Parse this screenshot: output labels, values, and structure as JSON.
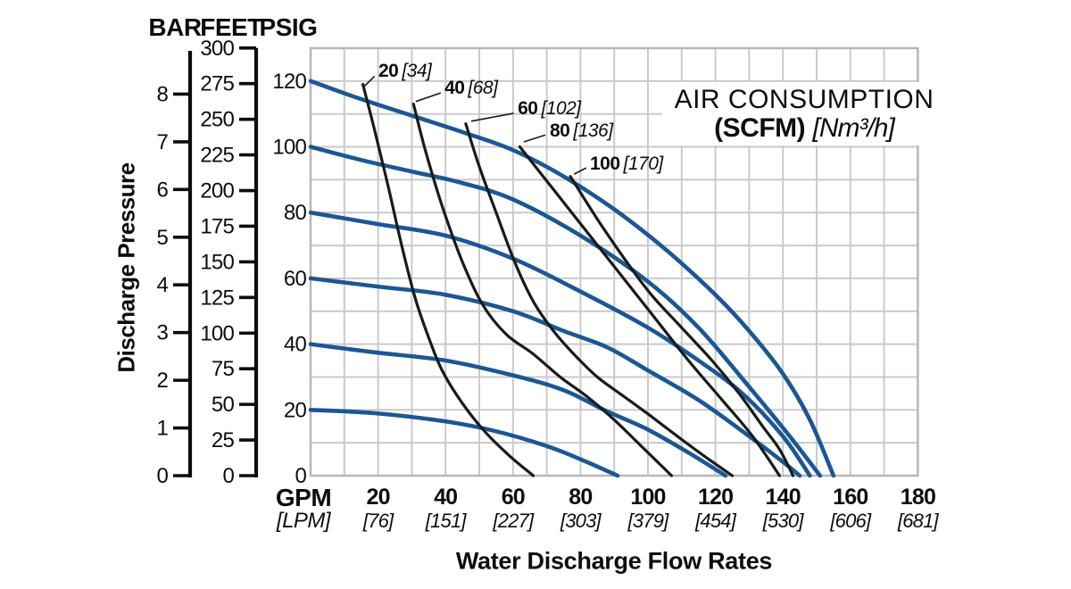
{
  "chart_data": {
    "type": "line",
    "title_box": {
      "line1": "AIR CONSUMPTION",
      "line2_bold": "(SCFM)",
      "line2_italic": "[Nm³/h]"
    },
    "axes": {
      "x": {
        "unit_bold": "GPM",
        "unit_italic": "[LPM]",
        "title": "Water Discharge Flow Rates",
        "min": 0,
        "max": 180,
        "grid_step": 10,
        "ticks": [
          {
            "gpm": "20",
            "lpm": "[76]"
          },
          {
            "gpm": "40",
            "lpm": "[151]"
          },
          {
            "gpm": "60",
            "lpm": "[227]"
          },
          {
            "gpm": "80",
            "lpm": "[303]"
          },
          {
            "gpm": "100",
            "lpm": "[379]"
          },
          {
            "gpm": "120",
            "lpm": "[454]"
          },
          {
            "gpm": "140",
            "lpm": "[530]"
          },
          {
            "gpm": "160",
            "lpm": "[606]"
          },
          {
            "gpm": "180",
            "lpm": "[681]"
          }
        ]
      },
      "y_title": "Discharge Pressure",
      "y_psig": {
        "header": "PSIG",
        "min": 0,
        "max": 130,
        "grid_step": 10,
        "labels": [
          "0",
          "20",
          "40",
          "60",
          "80",
          "100",
          "120"
        ]
      },
      "y_feet": {
        "header": "FEET",
        "max": 300,
        "step": 25,
        "labels": [
          "0",
          "25",
          "50",
          "75",
          "100",
          "125",
          "150",
          "175",
          "200",
          "225",
          "250",
          "275",
          "300"
        ]
      },
      "y_bar": {
        "header": "BAR",
        "max": 8,
        "step": 1,
        "labels": [
          "0",
          "1",
          "2",
          "3",
          "4",
          "5",
          "6",
          "7",
          "8"
        ]
      }
    },
    "water_curves": [
      {
        "name": "120 psig curve",
        "points": [
          [
            0,
            120
          ],
          [
            15,
            114.5
          ],
          [
            30,
            109.5
          ],
          [
            45,
            104.5
          ],
          [
            60,
            99
          ],
          [
            75,
            91
          ],
          [
            90,
            81
          ],
          [
            105,
            69
          ],
          [
            120,
            55
          ],
          [
            130,
            44
          ],
          [
            140,
            31
          ],
          [
            148,
            17
          ],
          [
            155,
            0
          ]
        ]
      },
      {
        "name": "100 psig curve",
        "points": [
          [
            0,
            100
          ],
          [
            15,
            96
          ],
          [
            30,
            92.5
          ],
          [
            45,
            89
          ],
          [
            60,
            84
          ],
          [
            80,
            73
          ],
          [
            100,
            59
          ],
          [
            115,
            45
          ],
          [
            130,
            27
          ],
          [
            142,
            12
          ],
          [
            151,
            0
          ]
        ]
      },
      {
        "name": "80 psig curve",
        "points": [
          [
            0,
            80
          ],
          [
            20,
            76.5
          ],
          [
            40,
            73
          ],
          [
            60,
            66
          ],
          [
            80,
            56
          ],
          [
            100,
            45
          ],
          [
            115,
            35
          ],
          [
            128,
            25
          ],
          [
            140,
            12
          ],
          [
            148,
            0
          ]
        ]
      },
      {
        "name": "60 psig curve",
        "points": [
          [
            0,
            60
          ],
          [
            20,
            57.5
          ],
          [
            40,
            55
          ],
          [
            60,
            50
          ],
          [
            75,
            44
          ],
          [
            88,
            39
          ],
          [
            100,
            32
          ],
          [
            115,
            23
          ],
          [
            130,
            12
          ],
          [
            139,
            5
          ],
          [
            145,
            0
          ]
        ]
      },
      {
        "name": "40 psig curve",
        "points": [
          [
            0,
            40
          ],
          [
            19,
            37.5
          ],
          [
            40,
            35
          ],
          [
            60,
            30.5
          ],
          [
            75,
            26
          ],
          [
            88,
            19.5
          ],
          [
            100,
            14
          ],
          [
            112,
            7
          ],
          [
            123,
            0
          ]
        ]
      },
      {
        "name": "20 psig curve",
        "points": [
          [
            0,
            20
          ],
          [
            19,
            19
          ],
          [
            40,
            16.5
          ],
          [
            55,
            13.5
          ],
          [
            70,
            9
          ],
          [
            80,
            5
          ],
          [
            91,
            0
          ]
        ]
      }
    ],
    "air_curves": [
      {
        "label": "20",
        "bracket": "[34]",
        "label_anchor": [
          20.1,
          121.3
        ],
        "leader": [
          [
            16,
            118.5
          ],
          [
            19,
            121.5
          ]
        ],
        "points": [
          [
            15.5,
            119
          ],
          [
            19,
            105
          ],
          [
            23,
            88
          ],
          [
            27,
            70
          ],
          [
            31,
            54
          ],
          [
            35,
            42
          ],
          [
            39,
            32
          ],
          [
            45,
            22
          ],
          [
            52,
            13
          ],
          [
            59,
            6
          ],
          [
            66,
            0
          ]
        ]
      },
      {
        "label": "40",
        "bracket": "[68]",
        "label_anchor": [
          39.7,
          116.1
        ],
        "leader": [
          [
            31.2,
            113.8
          ],
          [
            38.6,
            116.4
          ]
        ],
        "points": [
          [
            30.5,
            113
          ],
          [
            34,
            99
          ],
          [
            39,
            82
          ],
          [
            45,
            65
          ],
          [
            51,
            52
          ],
          [
            58,
            43
          ],
          [
            66,
            37
          ],
          [
            74,
            30
          ],
          [
            82,
            24
          ],
          [
            90,
            17
          ],
          [
            98,
            9
          ],
          [
            107,
            0
          ]
        ]
      },
      {
        "label": "60",
        "bracket": "[102]",
        "label_anchor": [
          61.4,
          109.9
        ],
        "leader": [
          [
            47.6,
            107.8
          ],
          [
            60.2,
            110.2
          ]
        ],
        "points": [
          [
            46,
            107
          ],
          [
            50,
            94
          ],
          [
            55,
            80
          ],
          [
            60.5,
            65
          ],
          [
            66,
            53
          ],
          [
            72,
            44
          ],
          [
            78,
            37
          ],
          [
            85,
            30
          ],
          [
            93,
            24
          ],
          [
            101,
            18
          ],
          [
            110,
            11
          ],
          [
            118,
            5
          ],
          [
            125,
            0
          ]
        ]
      },
      {
        "label": "80",
        "bracket": "[136]",
        "label_anchor": [
          70.9,
          103.1
        ],
        "leader": [
          [
            63.2,
            101.5
          ],
          [
            69.6,
            103.6
          ]
        ],
        "points": [
          [
            62,
            100
          ],
          [
            72,
            87
          ],
          [
            82,
            74
          ],
          [
            92,
            61
          ],
          [
            102,
            48
          ],
          [
            112,
            35
          ],
          [
            122,
            23
          ],
          [
            131,
            12
          ],
          [
            139,
            0
          ]
        ]
      },
      {
        "label": "100",
        "bracket": "[170]",
        "label_anchor": [
          82.8,
          93.1
        ],
        "leader": [
          [
            78.1,
            91.7
          ],
          [
            81.7,
            93.6
          ]
        ],
        "points": [
          [
            77,
            91
          ],
          [
            85,
            78
          ],
          [
            93,
            66
          ],
          [
            101,
            55
          ],
          [
            110,
            45
          ],
          [
            119,
            35
          ],
          [
            127,
            25
          ],
          [
            134,
            15
          ],
          [
            139,
            8
          ],
          [
            143,
            0
          ]
        ]
      }
    ],
    "colors": {
      "water": "#1b5795",
      "air": "#1a1a1a",
      "grid": "#cacaca",
      "grid_border": "#b7b7b7",
      "text": "#0d0d0d"
    }
  }
}
